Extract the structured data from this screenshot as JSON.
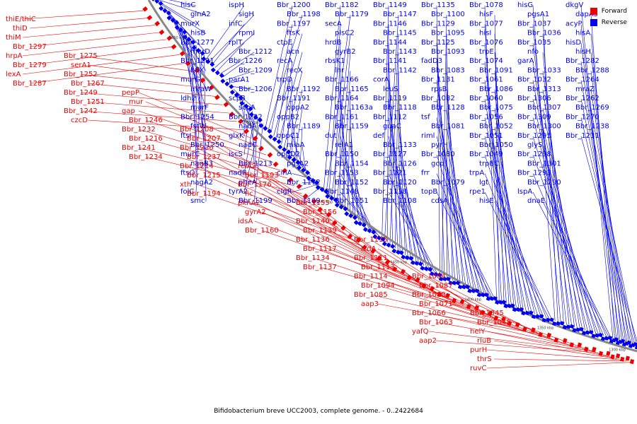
{
  "caption": "Bifidobacterium breve UCC2003, complete genome. - 0..2422684",
  "legend": [
    {
      "label": "Forward",
      "color": "#ee0000"
    },
    {
      "label": "Reverse",
      "color": "#0000ee"
    }
  ],
  "colors": {
    "forward": "#ee0000",
    "reverse": "#0000ee",
    "backbone": "#888888"
  },
  "scale_ticks": [
    "1600 kbp",
    "1550 kbp",
    "1500 kbp",
    "1450 kbp",
    "1400 kbp",
    "1350 kbp",
    "1300 kbp"
  ],
  "reverse_labels": [
    "hisC",
    "glnA2",
    "murX",
    "hisB",
    "Bbr_1277",
    "murD",
    "Bbr_1291",
    "hflX",
    "murG",
    "mraW",
    "ldh2",
    "murF",
    "Bbr_1254",
    "fstW",
    "ftsI",
    "Bbr_1250",
    "murC",
    "nagB3",
    "ftsQ",
    "nagA2",
    "folC",
    "smc",
    "ispH",
    "sigH",
    "infC",
    "rpmI",
    "rplT",
    "Bbr_1212",
    "Bbr_1226",
    "Bbr_1209",
    "parA1",
    "Bbr_1206",
    "scpB",
    "scpA",
    "Bbr_1222",
    "nadA",
    "glxK",
    "nadC",
    "iscS",
    "Bbr_1213",
    "nadB",
    "pheA",
    "tyrA2",
    "Bbr_1199",
    "Bbr_1200",
    "Bbr_1198",
    "Bbr_1197",
    "ftsK",
    "ctpE",
    "acn",
    "recA",
    "recX",
    "trpD",
    "Bbr_1192",
    "Bbr_1191",
    "oppA2",
    "oppB2",
    "Bbr_1189",
    "oppC1",
    "miaA",
    "oppD2",
    "pgsA2",
    "cinA",
    "Bbr_1172",
    "clgR",
    "Bbr_1169",
    "Bbr_1182",
    "Bbr_1179",
    "secA",
    "plsC2",
    "hrdB",
    "gyrB2",
    "rbsK1",
    "lhr",
    "Bbr_1166",
    "Bbr_1165",
    "Bbr_1164",
    "Bbr_1163a",
    "Bbr_1161",
    "Bbr_1159",
    "dut",
    "relA1",
    "Bbr_1150",
    "Bbr_1154",
    "Bbr_1153",
    "Bbr_1152",
    "Bbr_1148",
    "Bbr_1151",
    "Bbr_1149",
    "Bbr_1147",
    "Bbr_1146",
    "Bbr_1145",
    "Bbr_1144",
    "Bbr_1143",
    "Bbr_1141",
    "Bbr_1142",
    "corA",
    "leuS",
    "Bbr_1119",
    "Bbr_1118",
    "Bbr_1112",
    "guaC",
    "def",
    "Bbr_1133",
    "Bbr_1127",
    "Bbr_1126",
    "Bbr_1121",
    "Bbr_1120",
    "Bbr_1138",
    "Bbr_1108",
    "Bbr_1135",
    "Bbr_1100",
    "Bbr_1129",
    "Bbr_1095",
    "Bbr_1125",
    "Bbr_1093",
    "fadD3",
    "Bbr_1083",
    "Bbr_1131",
    "rpsB",
    "Bbr_1082",
    "Bbr_1128",
    "tsf",
    "Bbr_1081",
    "riml",
    "pyrH",
    "Bbr_1080",
    "gcp",
    "frr",
    "Bbr_1079",
    "topB",
    "cdsA",
    "Bbr_1078",
    "hisF",
    "Bbr_1077",
    "hisI",
    "Bbr_1076",
    "trpE",
    "Bbr_1074",
    "Bbr_1091",
    "Bbr_1061",
    "Bbr_1086",
    "Bbr_1060",
    "Bbr_1075",
    "Bbr_1056",
    "Bbr_1052",
    "Bbr_1051",
    "Bbr_1050",
    "Bbr_1049",
    "trpBC",
    "trpA",
    "lgt",
    "rpe1",
    "hisE",
    "hisG",
    "pgsA1",
    "Bbr_1037",
    "Bbr_1036",
    "Bbr_1035",
    "nfo",
    "garA",
    "Bbr_1033",
    "Bbr_1032",
    "Bbr_1313",
    "Bbr_1306",
    "Bbr_1307",
    "Bbr_1309",
    "Bbr_1300",
    "Bbr_1295",
    "glyS",
    "Bbr_1298",
    "Bbr_1301",
    "Bbr_1293",
    "Bbr_1290",
    "lspA",
    "dnaE",
    "dkgV",
    "dapA3",
    "acyP",
    "hisA",
    "hisD",
    "hisH",
    "Bbr_1282",
    "Bbr_1288",
    "Bbr_1264",
    "mraZ",
    "Bbr_1262",
    "Bbr_1269",
    "Bbr_1270",
    "Bbr_1238",
    "Bbr_1231"
  ],
  "forward_labels": [
    "thiE/thiC",
    "thiD",
    "thiM",
    "Bbr_1297",
    "hrpA",
    "Bbr_1279",
    "lexA",
    "Bbr_1287",
    "Bbr_1275",
    "serA1",
    "Bbr_1252",
    "Bbr_1267",
    "Bbr_1249",
    "Bbr_1251",
    "Bbr_1242",
    "czcD",
    "pepP",
    "mur",
    "gap",
    "Bbr_1246",
    "Bbr_1232",
    "Bbr_1216",
    "Bbr_1241",
    "Bbr_1234",
    "Bbr_1208",
    "Bbr_1207",
    "Bbr_1236",
    "Bbr_1237",
    "Bbr_1214",
    "Bbr_1215",
    "xth",
    "Bbr_1194",
    "relA2",
    "Bbr_1193",
    "Bbr_1176",
    "fic",
    "pknA2",
    "gyrA2",
    "idsA",
    "Bbr_1160",
    "Bbr_1155",
    "Bbr_1156",
    "Bbr_1140",
    "Bbr_1139",
    "Bbr_1136",
    "Bbr_1117",
    "Bbr_1134",
    "Bbr_1137",
    "Bbr_1115",
    "icdA",
    "Bbr_1111",
    "Bbr_1113",
    "Bbr_1114",
    "Bbr_1094",
    "Bbr_1085",
    "aap3",
    "Bbr_1084",
    "Bbr_1087",
    "Bbr_1088",
    "Bbr_1071",
    "Bbr_1066",
    "Bbr_1063",
    "yafQ",
    "aap2",
    "Bbr_1045",
    "Bbr_1048",
    "helY",
    "rluB",
    "purH",
    "thrS",
    "ruvC"
  ]
}
